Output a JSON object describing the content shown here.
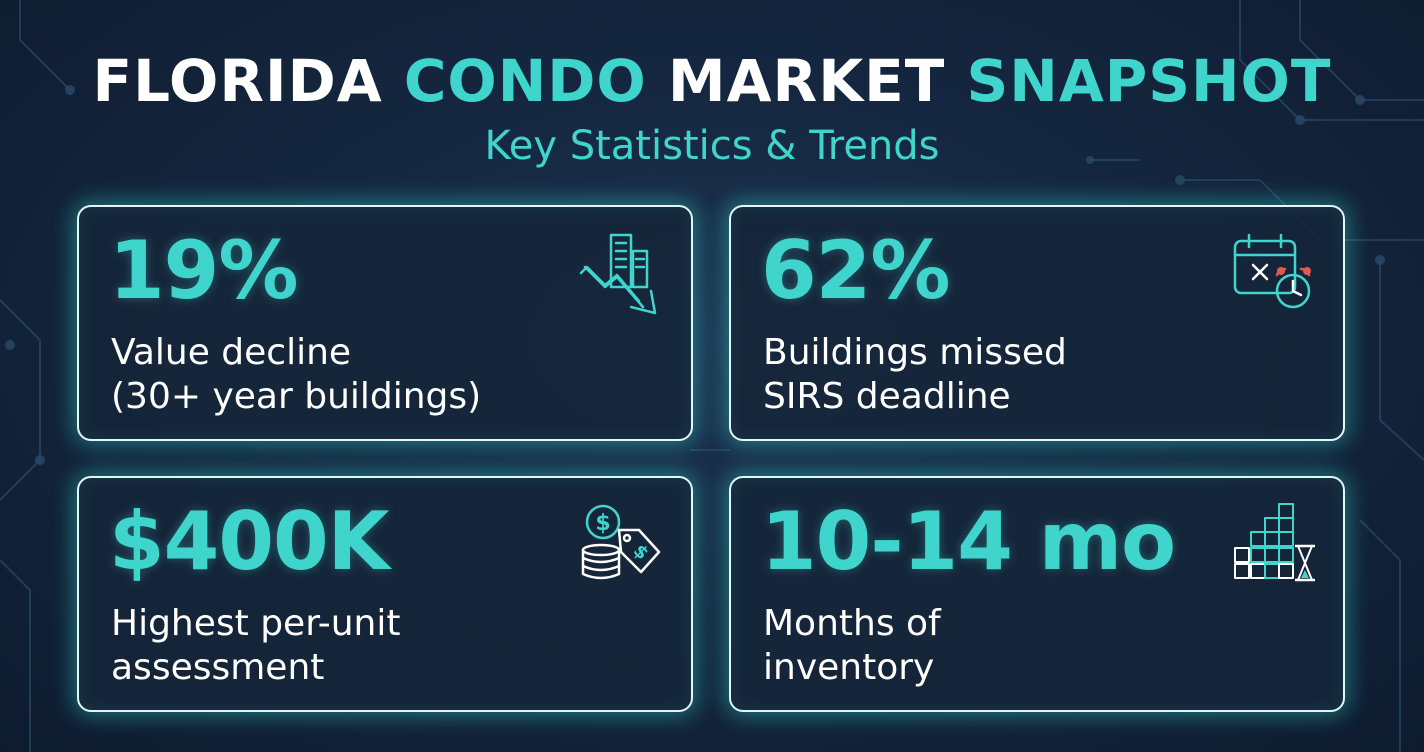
{
  "header": {
    "title_parts": [
      "FLORIDA",
      "CONDO",
      "MARKET",
      "SNAPSHOT"
    ],
    "subtitle": "Key Statistics & Trends"
  },
  "cards": [
    {
      "stat": "19%",
      "desc_lines": [
        "Value decline",
        "(30+ year buildings)"
      ],
      "icon": "declining-buildings-icon"
    },
    {
      "stat": "62%",
      "desc_lines": [
        "Buildings missed",
        "SIRS deadline"
      ],
      "icon": "missed-deadline-calendar-icon"
    },
    {
      "stat": "$400K",
      "desc_lines": [
        "Highest per-unit",
        "assessment"
      ],
      "icon": "money-tag-icon"
    },
    {
      "stat": "10-14 mo",
      "desc_lines": [
        "Months of",
        "inventory"
      ],
      "icon": "inventory-hourglass-icon"
    }
  ],
  "colors": {
    "accent": "#3fd4cc",
    "text": "#ffffff",
    "background": "#152740",
    "card_border": "#dff7f6"
  }
}
